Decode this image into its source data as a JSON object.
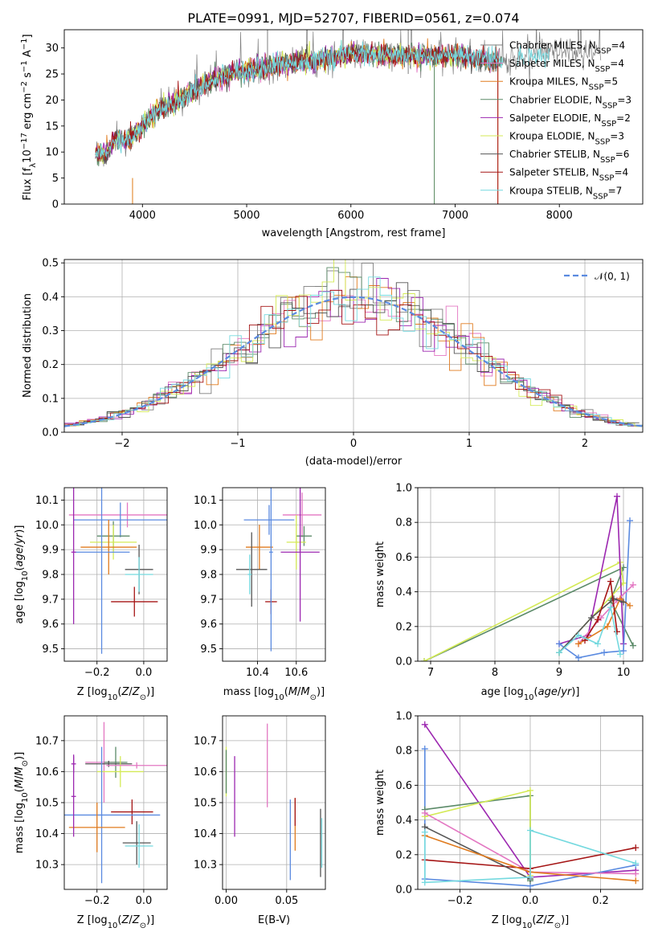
{
  "chart_data": [
    {
      "id": "spectrum",
      "type": "line",
      "title": "PLATE=0991, MJD=52707, FIBERID=0561, z=0.074",
      "xlabel": "wavelength [Angstrom, rest frame]",
      "ylabel": "Flux [f$_\\lambda$10$^{-17}$ erg cm$^{-2}$ s$^{-1}$ A$^{-1}$]",
      "ylabel_parts": [
        "Flux [f",
        "λ",
        "10",
        "−17",
        " erg cm",
        "−2",
        " s",
        "−1",
        " A",
        "−1",
        "]"
      ],
      "xlim": [
        3250,
        8800
      ],
      "ylim": [
        0,
        33.5
      ],
      "xticks": [
        4000,
        5000,
        6000,
        7000,
        8000
      ],
      "yticks": [
        0,
        5,
        10,
        15,
        20,
        25,
        30
      ],
      "grid": false,
      "legend_position": "upper right",
      "continuum_x": [
        3550,
        3650,
        3750,
        3850,
        3950,
        4050,
        4150,
        4250,
        4350,
        4450,
        4600,
        4750,
        4900,
        5000,
        5200,
        5400,
        5600,
        5800,
        6000,
        6200,
        6400,
        6600,
        6800,
        7000,
        7200,
        7400,
        7600,
        7800,
        8000,
        8200,
        8400
      ],
      "continuum_y": [
        10,
        9.5,
        13,
        12,
        14,
        16,
        18,
        19,
        20,
        21.5,
        23,
        24.5,
        25.5,
        25.5,
        26.5,
        27,
        27.5,
        28,
        29,
        28.5,
        28.5,
        28.5,
        28.5,
        28.5,
        28,
        27.5,
        28,
        29,
        29,
        28.5,
        29
      ],
      "series": [
        {
          "name": "Chabrier MILES",
          "nssp": "4",
          "color": "#7f7f7f"
        },
        {
          "name": "Salpeter MILES",
          "nssp": "4",
          "color": "#e377c2"
        },
        {
          "name": "Kroupa MILES",
          "nssp": "5",
          "color": "#e07b1e"
        },
        {
          "name": "Chabrier ELODIE",
          "nssp": "3",
          "color": "#5b8a68"
        },
        {
          "name": "Salpeter ELODIE",
          "nssp": "2",
          "color": "#9c27b0"
        },
        {
          "name": "Kroupa ELODIE",
          "nssp": "3",
          "color": "#d4ea56"
        },
        {
          "name": "Chabrier STELIB",
          "nssp": "6",
          "color": "#555555"
        },
        {
          "name": "Salpeter STELIB",
          "nssp": "4",
          "color": "#a51515"
        },
        {
          "name": "Kroupa STELIB",
          "nssp": "7",
          "color": "#74d9df"
        }
      ]
    },
    {
      "id": "residuals",
      "type": "histogram",
      "xlabel": "(data-model)/error",
      "ylabel": "Normed distribution",
      "xlim": [
        -2.5,
        2.5
      ],
      "ylim": [
        0,
        0.51
      ],
      "xticks": [
        -2,
        -1,
        0,
        1,
        2
      ],
      "xtick_labels": [
        "−2",
        "−1",
        "0",
        "1",
        "2"
      ],
      "yticks": [
        0.0,
        0.1,
        0.2,
        0.3,
        0.4,
        0.5
      ],
      "ytick_labels": [
        "0.0",
        "0.1",
        "0.2",
        "0.3",
        "0.4",
        "0.5"
      ],
      "grid": true,
      "legend_position": "upper right",
      "legend_label": "𝒩(0, 1)",
      "bin_width": 0.1,
      "reference_color": "#5a8ae0"
    },
    {
      "id": "age_vs_Z",
      "type": "errorbar",
      "xlabel": "Z [log$_{10}$($Z/Z_\\odot$)]",
      "ylabel": "age  [log$_{10}$($age/yr$)]",
      "xlim": [
        -0.34,
        0.1
      ],
      "ylim": [
        9.45,
        10.15
      ],
      "xticks": [
        -0.2,
        0.0
      ],
      "xtick_labels": [
        "−0.2",
        "0.0"
      ],
      "yticks": [
        9.5,
        9.6,
        9.7,
        9.8,
        9.9,
        10.0,
        10.1
      ],
      "ytick_labels": [
        "9.5",
        "9.6",
        "9.7",
        "9.8",
        "9.9",
        "10.0",
        "10.1"
      ],
      "points": [
        {
          "x": -0.07,
          "y": 10.04,
          "xerr": 0.25,
          "yerr": 0.05,
          "color": "#e377c2"
        },
        {
          "x": -0.1,
          "y": 10.02,
          "xerr": 0.2,
          "yerr": 0.07,
          "color": "#5a8ae0"
        },
        {
          "x": -0.13,
          "y": 9.955,
          "xerr": 0.07,
          "yerr": 0.06,
          "color": "#5b8a68"
        },
        {
          "x": -0.13,
          "y": 9.93,
          "xerr": 0.1,
          "yerr": 0.07,
          "color": "#d4ea56"
        },
        {
          "x": -0.15,
          "y": 9.91,
          "xerr": 0.12,
          "yerr": 0.11,
          "color": "#e07b1e"
        },
        {
          "x": -0.18,
          "y": 9.89,
          "xerr": 0.12,
          "yerr": 0.41,
          "color": "#5a8ae0"
        },
        {
          "x": -0.3,
          "y": 9.89,
          "xerr": 0.01,
          "yerr": 0.29,
          "color": "#9c27b0"
        },
        {
          "x": -0.02,
          "y": 9.82,
          "xerr": 0.06,
          "yerr": 0.1,
          "color": "#555555"
        },
        {
          "x": -0.02,
          "y": 9.8,
          "xerr": 0.06,
          "yerr": 0.07,
          "color": "#74d9df"
        },
        {
          "x": -0.04,
          "y": 9.69,
          "xerr": 0.1,
          "yerr": 0.06,
          "color": "#a51515"
        }
      ]
    },
    {
      "id": "age_vs_mass",
      "type": "errorbar",
      "xlabel": "mass [log$_{10}$($M/M_\\odot$)]",
      "ylabel": "",
      "xlim": [
        10.22,
        10.75
      ],
      "ylim": [
        9.45,
        10.15
      ],
      "xticks": [
        10.4,
        10.6
      ],
      "xtick_labels": [
        "10.4",
        "10.6"
      ],
      "yticks": [
        9.5,
        9.6,
        9.7,
        9.8,
        9.9,
        10.0,
        10.1
      ],
      "ytick_labels": [
        "9.5",
        "9.6",
        "9.7",
        "9.8",
        "9.9",
        "10.0",
        "10.1"
      ],
      "points": [
        {
          "x": 10.63,
          "y": 10.04,
          "xerr": 0.1,
          "yerr": 0.09,
          "color": "#e377c2"
        },
        {
          "x": 10.46,
          "y": 10.02,
          "xerr": 0.13,
          "yerr": 0.06,
          "color": "#5a8ae0"
        },
        {
          "x": 10.64,
          "y": 9.955,
          "xerr": 0.04,
          "yerr": 0.04,
          "color": "#5b8a68"
        },
        {
          "x": 10.6,
          "y": 9.93,
          "xerr": 0.05,
          "yerr": 0.11,
          "color": "#d4ea56"
        },
        {
          "x": 10.41,
          "y": 9.91,
          "xerr": 0.07,
          "yerr": 0.09,
          "color": "#e07b1e"
        },
        {
          "x": 10.62,
          "y": 9.89,
          "xerr": 0.1,
          "yerr": 0.28,
          "color": "#9c27b0"
        },
        {
          "x": 10.37,
          "y": 9.82,
          "xerr": 0.08,
          "yerr": 0.15,
          "color": "#555555"
        },
        {
          "x": 10.36,
          "y": 9.8,
          "xerr": 0.01,
          "yerr": 0.08,
          "color": "#74d9df"
        },
        {
          "x": 10.47,
          "y": 9.69,
          "xerr": 0.03,
          "yerr": 0.05,
          "color": "#a51515"
        },
        {
          "x": 10.47,
          "y": 9.89,
          "xerr": 0.01,
          "yerr": 0.4,
          "color": "#5a8ae0"
        }
      ]
    },
    {
      "id": "weight_vs_age",
      "type": "line",
      "xlabel": "age  [log$_{10}$($age/yr$)]",
      "ylabel": "mass weight",
      "xlim": [
        6.8,
        10.3
      ],
      "ylim": [
        0,
        1.0
      ],
      "xticks": [
        7,
        8,
        9,
        10
      ],
      "xtick_labels": [
        "7",
        "8",
        "9",
        "10"
      ],
      "yticks": [
        0.0,
        0.2,
        0.4,
        0.6,
        0.8,
        1.0
      ],
      "ytick_labels": [
        "0.0",
        "0.2",
        "0.4",
        "0.6",
        "0.8",
        "1.0"
      ],
      "grid": true,
      "series": [
        {
          "color": "#5b8a68",
          "x": [
            6.9,
            10.0,
            9.8,
            10.15
          ],
          "y": [
            0.0,
            0.54,
            0.35,
            0.09
          ]
        },
        {
          "color": "#d4ea56",
          "x": [
            6.9,
            9.95,
            10.0,
            9.0
          ],
          "y": [
            0.0,
            0.57,
            0.45,
            0.05
          ]
        },
        {
          "color": "#9c27b0",
          "x": [
            9.0,
            9.45,
            9.9,
            10.0
          ],
          "y": [
            0.1,
            0.15,
            0.95,
            0.1
          ]
        },
        {
          "color": "#5a8ae0",
          "x": [
            9.0,
            9.3,
            9.7,
            10.0,
            10.1
          ],
          "y": [
            0.1,
            0.02,
            0.05,
            0.06,
            0.81
          ]
        },
        {
          "color": "#e377c2",
          "x": [
            9.3,
            9.65,
            9.9,
            10.15
          ],
          "y": [
            0.1,
            0.25,
            0.35,
            0.44
          ]
        },
        {
          "color": "#e07b1e",
          "x": [
            9.3,
            9.75,
            9.95,
            10.1
          ],
          "y": [
            0.1,
            0.2,
            0.36,
            0.32
          ]
        },
        {
          "color": "#555555",
          "x": [
            9.0,
            9.5,
            9.85,
            10.0
          ],
          "y": [
            0.05,
            0.25,
            0.36,
            0.34
          ]
        },
        {
          "color": "#a51515",
          "x": [
            9.4,
            9.6,
            9.8,
            9.9
          ],
          "y": [
            0.12,
            0.24,
            0.46,
            0.17
          ]
        },
        {
          "color": "#74d9df",
          "x": [
            9.0,
            9.3,
            9.6,
            9.8,
            9.95
          ],
          "y": [
            0.05,
            0.15,
            0.1,
            0.31,
            0.04
          ]
        }
      ]
    },
    {
      "id": "mass_vs_Z",
      "type": "errorbar",
      "xlabel": "Z [log$_{10}$($Z/Z_\\odot$)]",
      "ylabel": "mass [log$_{10}$($M/M_\\odot$)]",
      "xlim": [
        -0.34,
        0.1
      ],
      "ylim": [
        10.22,
        10.78
      ],
      "xticks": [
        -0.2,
        0.0
      ],
      "xtick_labels": [
        "−0.2",
        "0.0"
      ],
      "yticks": [
        10.3,
        10.4,
        10.5,
        10.6,
        10.7
      ],
      "ytick_labels": [
        "10.3",
        "10.4",
        "10.5",
        "10.6",
        "10.7"
      ],
      "points": [
        {
          "x": -0.17,
          "y": 10.63,
          "xerr": 0.08,
          "yerr": 0.13,
          "color": "#e377c2"
        },
        {
          "x": -0.12,
          "y": 10.63,
          "xerr": 0.05,
          "yerr": 0.05,
          "color": "#5b8a68"
        },
        {
          "x": -0.15,
          "y": 10.625,
          "xerr": 0.1,
          "yerr": 0.01,
          "color": "#555555"
        },
        {
          "x": -0.3,
          "y": 10.625,
          "xerr": 0.01,
          "yerr": 0.03,
          "color": "#9c27b0"
        },
        {
          "x": -0.1,
          "y": 10.6,
          "xerr": 0.1,
          "yerr": 0.05,
          "color": "#d4ea56"
        },
        {
          "x": -0.03,
          "y": 10.62,
          "xerr": 0.13,
          "yerr": 0.01,
          "color": "#e377c2"
        },
        {
          "x": -0.05,
          "y": 10.47,
          "xerr": 0.09,
          "yerr": 0.04,
          "color": "#a51515"
        },
        {
          "x": -0.18,
          "y": 10.46,
          "xerr": 0.25,
          "yerr": 0.22,
          "color": "#5a8ae0"
        },
        {
          "x": -0.2,
          "y": 10.42,
          "xerr": 0.12,
          "yerr": 0.08,
          "color": "#e07b1e"
        },
        {
          "x": -0.03,
          "y": 10.37,
          "xerr": 0.06,
          "yerr": 0.07,
          "color": "#555555"
        },
        {
          "x": -0.02,
          "y": 10.36,
          "xerr": 0.06,
          "yerr": 0.07,
          "color": "#74d9df"
        },
        {
          "x": -0.3,
          "y": 10.52,
          "xerr": 0.01,
          "yerr": 0.13,
          "color": "#9c27b0"
        }
      ]
    },
    {
      "id": "mass_vs_ebv",
      "type": "errorbar",
      "xlabel": "E(B-V)",
      "ylabel": "",
      "xlim": [
        -0.003,
        0.082
      ],
      "ylim": [
        10.22,
        10.78
      ],
      "xticks": [
        0.0,
        0.05
      ],
      "xtick_labels": [
        "0.00",
        "0.05"
      ],
      "yticks": [
        10.3,
        10.4,
        10.5,
        10.6,
        10.7
      ],
      "ytick_labels": [
        "10.3",
        "10.4",
        "10.5",
        "10.6",
        "10.7"
      ],
      "points": [
        {
          "x": 0.0,
          "y": 10.6,
          "xerr": 0.0,
          "yerr": 0.08,
          "color": "#d4ea56"
        },
        {
          "x": 0.0,
          "y": 10.6,
          "xerr": 0.0,
          "yerr": 0.07,
          "color": "#5b8a68"
        },
        {
          "x": 0.007,
          "y": 10.52,
          "xerr": 0.0,
          "yerr": 0.13,
          "color": "#9c27b0"
        },
        {
          "x": 0.034,
          "y": 10.62,
          "xerr": 0.0,
          "yerr": 0.135,
          "color": "#e377c2"
        },
        {
          "x": 0.053,
          "y": 10.38,
          "xerr": 0.0,
          "yerr": 0.13,
          "color": "#5a8ae0"
        },
        {
          "x": 0.057,
          "y": 10.43,
          "xerr": 0.0,
          "yerr": 0.085,
          "color": "#e07b1e"
        },
        {
          "x": 0.057,
          "y": 10.47,
          "xerr": 0.0,
          "yerr": 0.045,
          "color": "#a51515"
        },
        {
          "x": 0.078,
          "y": 10.37,
          "xerr": 0.0,
          "yerr": 0.11,
          "color": "#555555"
        },
        {
          "x": 0.079,
          "y": 10.37,
          "xerr": 0.0,
          "yerr": 0.08,
          "color": "#74d9df"
        }
      ]
    },
    {
      "id": "weight_vs_Z",
      "type": "line",
      "xlabel": "Z [log$_{10}$($Z/Z_\\odot$)]",
      "ylabel": "mass weight",
      "xlim": [
        -0.32,
        0.32
      ],
      "ylim": [
        0,
        1.0
      ],
      "xticks": [
        -0.2,
        0.0,
        0.2
      ],
      "xtick_labels": [
        "−0.2",
        "0.0",
        "0.2"
      ],
      "yticks": [
        0.0,
        0.2,
        0.4,
        0.6,
        0.8,
        1.0
      ],
      "ytick_labels": [
        "0.0",
        "0.2",
        "0.4",
        "0.6",
        "0.8",
        "1.0"
      ],
      "grid": true,
      "series": [
        {
          "color": "#9c27b0",
          "x": [
            -0.3,
            0.0,
            0.3
          ],
          "y": [
            0.95,
            0.07,
            0.11
          ]
        },
        {
          "color": "#5a8ae0",
          "x": [
            -0.3,
            -0.3,
            0.0,
            0.3
          ],
          "y": [
            0.81,
            0.06,
            0.02,
            0.14
          ]
        },
        {
          "color": "#5b8a68",
          "x": [
            -0.3,
            0.0,
            0.0
          ],
          "y": [
            0.46,
            0.54,
            0.05
          ]
        },
        {
          "color": "#d4ea56",
          "x": [
            -0.3,
            0.0,
            0.0
          ],
          "y": [
            0.42,
            0.57,
            0.08
          ]
        },
        {
          "color": "#e377c2",
          "x": [
            -0.3,
            0.0,
            0.3
          ],
          "y": [
            0.44,
            0.1,
            0.09
          ]
        },
        {
          "color": "#a51515",
          "x": [
            -0.3,
            0.0,
            0.3
          ],
          "y": [
            0.17,
            0.12,
            0.24
          ]
        },
        {
          "color": "#555555",
          "x": [
            -0.3,
            0.0
          ],
          "y": [
            0.36,
            0.06
          ]
        },
        {
          "color": "#e07b1e",
          "x": [
            -0.3,
            0.0,
            0.3
          ],
          "y": [
            0.31,
            0.1,
            0.05
          ]
        },
        {
          "color": "#74d9df",
          "x": [
            -0.3,
            -0.3,
            0.0,
            0.0,
            0.3
          ],
          "y": [
            0.33,
            0.04,
            0.07,
            0.34,
            0.15
          ]
        }
      ]
    }
  ]
}
